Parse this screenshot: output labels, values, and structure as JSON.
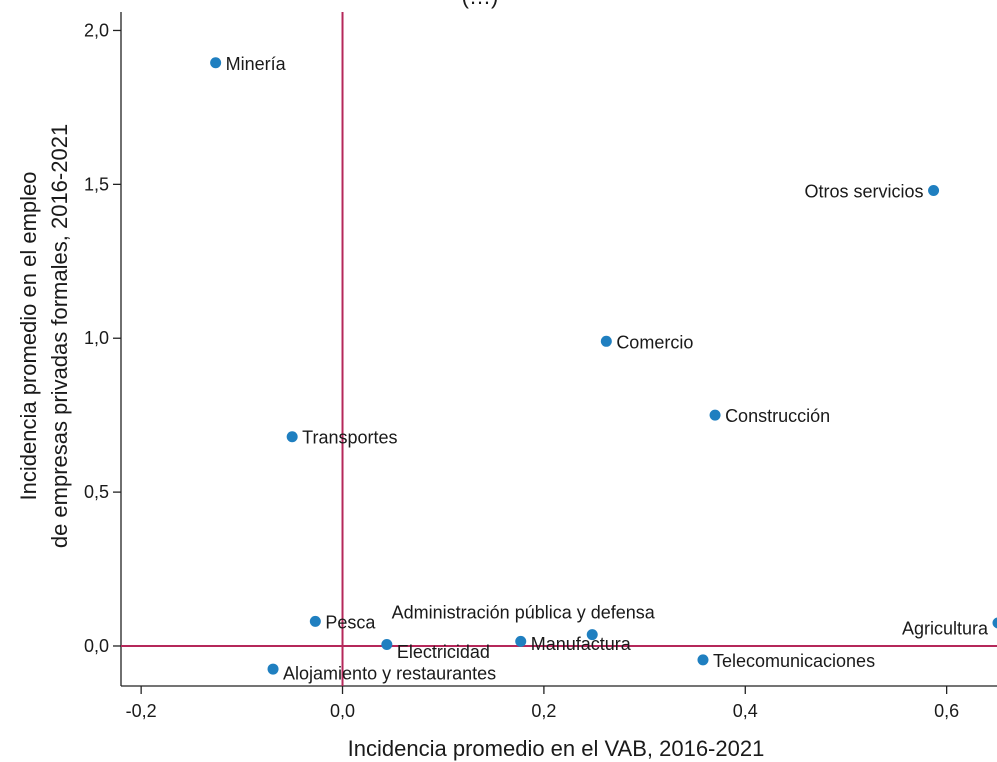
{
  "chart_data": {
    "type": "scatter",
    "title": "(…)",
    "xlabel": "Incidencia promedio en el VAB, 2016-2021",
    "ylabel_lines": [
      "Incidencia promedio en el empleo",
      "de empresas privadas formales, 2016-2021"
    ],
    "xlim": [
      -0.22,
      0.65
    ],
    "ylim": [
      -0.13,
      2.06
    ],
    "x_ticks": [
      -0.2,
      0.0,
      0.2,
      0.4,
      0.6
    ],
    "x_tick_labels": [
      "-0,2",
      "0,0",
      "0,2",
      "0,4",
      "0,6"
    ],
    "y_ticks": [
      0.0,
      0.5,
      1.0,
      1.5,
      2.0
    ],
    "y_tick_labels": [
      "0,0",
      "0,5",
      "1,0",
      "1,5",
      "2,0"
    ],
    "reference_lines": {
      "x": 0.0,
      "y": 0.0,
      "color": "#b5285a"
    },
    "marker_color": "#1f7fc0",
    "grid": false,
    "points": [
      {
        "label": "Minería",
        "x": -0.126,
        "y": 1.895
      },
      {
        "label": "Otros servicios",
        "x": 0.587,
        "y": 1.48,
        "label_side": "left"
      },
      {
        "label": "Comercio",
        "x": 0.262,
        "y": 0.99
      },
      {
        "label": "Construcción",
        "x": 0.37,
        "y": 0.75
      },
      {
        "label": "Transportes",
        "x": -0.05,
        "y": 0.68
      },
      {
        "label": "Pesca",
        "x": -0.027,
        "y": 0.08
      },
      {
        "label": "Electricidad",
        "x": 0.044,
        "y": 0.005,
        "label_dy": 0.4
      },
      {
        "label": "Manufactura",
        "x": 0.177,
        "y": 0.015,
        "label_dy": 0.1
      },
      {
        "label": "Administración pública y defensa",
        "x": 0.248,
        "y": 0.037,
        "label_side": "above"
      },
      {
        "label": "Agricultura",
        "x": 0.651,
        "y": 0.075,
        "label_side": "left",
        "label_dy": 0.3
      },
      {
        "label": "Telecomunicaciones",
        "x": 0.358,
        "y": -0.045
      },
      {
        "label": "Alojamiento y restaurantes",
        "x": -0.069,
        "y": -0.075,
        "label_dy": 0.2
      }
    ]
  }
}
